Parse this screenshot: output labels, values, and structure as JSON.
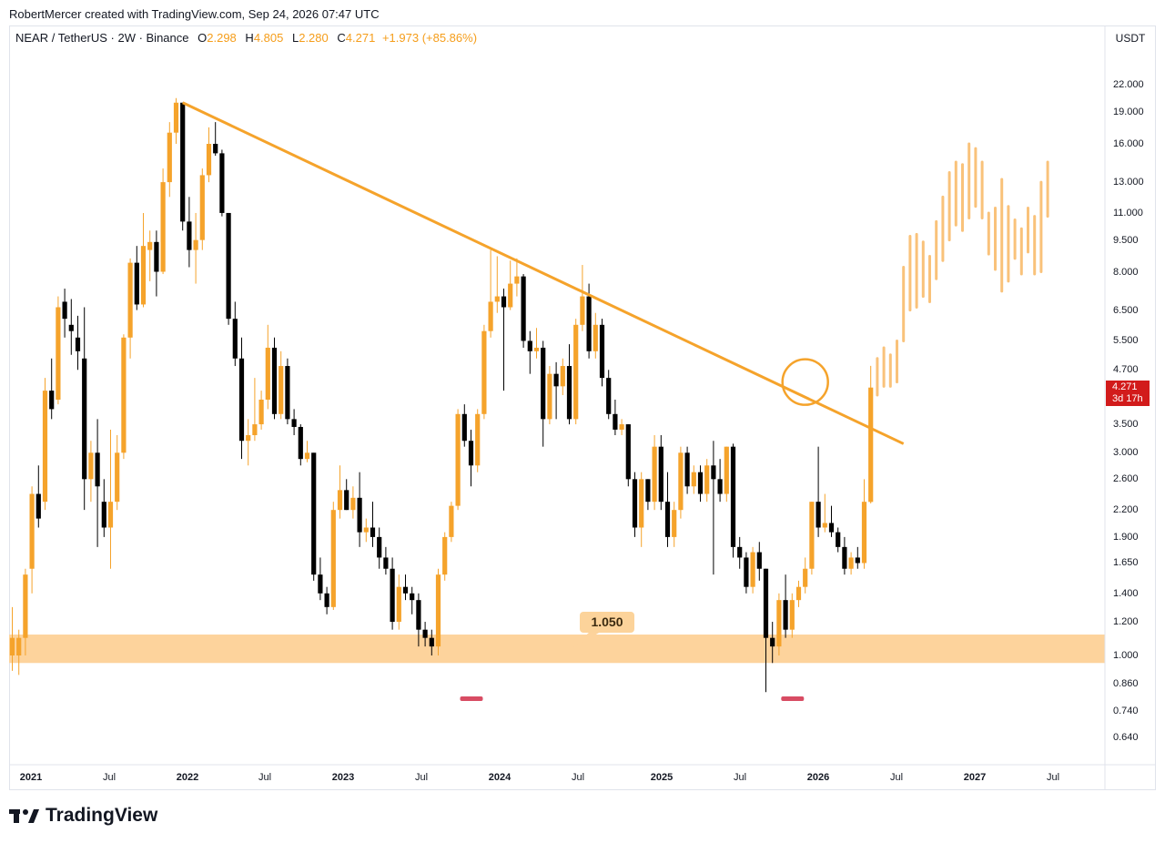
{
  "attribution": "RobertMercer created with TradingView.com, Sep 24, 2026 07:47 UTC",
  "legend": {
    "symbol": "NEAR / TetherUS · 2W · Binance",
    "open_key": "O",
    "open": "2.298",
    "high_key": "H",
    "high": "4.805",
    "low_key": "L",
    "low": "2.280",
    "close_key": "C",
    "close": "4.271",
    "change": "+1.973 (+85.86%)"
  },
  "currency_button": "USDT",
  "price_axis_labels": [
    "22.000",
    "19.000",
    "16.000",
    "13.000",
    "11.000",
    "9.500",
    "8.000",
    "6.500",
    "5.500",
    "4.700",
    "3.500",
    "3.000",
    "2.600",
    "2.200",
    "1.900",
    "1.650",
    "1.400",
    "1.200",
    "1.000",
    "0.860",
    "0.740",
    "0.640"
  ],
  "last_price_badge": {
    "price": "4.271",
    "countdown": "3d 17h"
  },
  "support_level_label": "1.050",
  "footer_brand": "TradingView",
  "colors": {
    "bull": "#f5a32b",
    "bear": "#000000",
    "trendline": "#f5a32b",
    "zone": "#fdd39c",
    "projection": "#f9c27a",
    "marker": "#d84c63",
    "badge": "#d21b1b"
  },
  "chart_data": {
    "type": "candlestick",
    "symbol": "NEAR / TetherUS",
    "interval": "2W",
    "exchange": "Binance",
    "y_scale": "log",
    "ylim": [
      0.6,
      24
    ],
    "x_ticks": [
      "2021",
      "Jul",
      "2022",
      "Jul",
      "2023",
      "Jul",
      "2024",
      "Jul",
      "2025",
      "Jul",
      "2026",
      "Jul",
      "2027",
      "Jul"
    ],
    "candles": [
      {
        "o": 1.0,
        "h": 1.3,
        "l": 0.92,
        "c": 1.1
      },
      {
        "o": 1.0,
        "h": 1.15,
        "l": 0.9,
        "c": 1.1
      },
      {
        "o": 1.1,
        "h": 1.6,
        "l": 1.0,
        "c": 1.55
      },
      {
        "o": 1.6,
        "h": 2.5,
        "l": 1.4,
        "c": 2.4
      },
      {
        "o": 2.4,
        "h": 2.8,
        "l": 2.0,
        "c": 2.1
      },
      {
        "o": 2.3,
        "h": 4.5,
        "l": 2.2,
        "c": 4.2
      },
      {
        "o": 4.2,
        "h": 5.0,
        "l": 3.6,
        "c": 3.8
      },
      {
        "o": 4.0,
        "h": 7.0,
        "l": 3.9,
        "c": 6.6
      },
      {
        "o": 6.8,
        "h": 7.3,
        "l": 5.6,
        "c": 6.2
      },
      {
        "o": 6.0,
        "h": 6.9,
        "l": 5.1,
        "c": 5.8
      },
      {
        "o": 5.6,
        "h": 6.3,
        "l": 4.7,
        "c": 5.2
      },
      {
        "o": 5.0,
        "h": 6.6,
        "l": 2.2,
        "c": 2.6
      },
      {
        "o": 2.6,
        "h": 3.2,
        "l": 2.3,
        "c": 3.0
      },
      {
        "o": 3.0,
        "h": 3.6,
        "l": 1.8,
        "c": 2.5
      },
      {
        "o": 2.3,
        "h": 2.6,
        "l": 1.9,
        "c": 2.0
      },
      {
        "o": 2.0,
        "h": 3.4,
        "l": 1.6,
        "c": 2.3
      },
      {
        "o": 2.3,
        "h": 3.3,
        "l": 2.2,
        "c": 3.0
      },
      {
        "o": 3.0,
        "h": 5.7,
        "l": 2.9,
        "c": 5.6
      },
      {
        "o": 5.6,
        "h": 8.6,
        "l": 5.0,
        "c": 8.4
      },
      {
        "o": 8.4,
        "h": 9.2,
        "l": 6.5,
        "c": 6.7
      },
      {
        "o": 6.7,
        "h": 11.0,
        "l": 6.6,
        "c": 9.2
      },
      {
        "o": 9.0,
        "h": 10.0,
        "l": 7.6,
        "c": 9.4
      },
      {
        "o": 9.4,
        "h": 10.0,
        "l": 7.0,
        "c": 8.0
      },
      {
        "o": 8.0,
        "h": 14.0,
        "l": 7.9,
        "c": 13.0
      },
      {
        "o": 13.0,
        "h": 18.0,
        "l": 12.0,
        "c": 17.0
      },
      {
        "o": 17.0,
        "h": 20.5,
        "l": 16.0,
        "c": 20.0
      },
      {
        "o": 20.0,
        "h": 20.0,
        "l": 10.0,
        "c": 10.5
      },
      {
        "o": 10.5,
        "h": 12.0,
        "l": 8.2,
        "c": 9.0
      },
      {
        "o": 9.0,
        "h": 11.0,
        "l": 7.5,
        "c": 9.5
      },
      {
        "o": 9.5,
        "h": 14.0,
        "l": 9.0,
        "c": 13.5
      },
      {
        "o": 13.5,
        "h": 17.5,
        "l": 13.0,
        "c": 16.0
      },
      {
        "o": 16.0,
        "h": 18.0,
        "l": 15.0,
        "c": 15.2
      },
      {
        "o": 15.2,
        "h": 15.5,
        "l": 10.8,
        "c": 11.0
      },
      {
        "o": 11.0,
        "h": 11.0,
        "l": 6.0,
        "c": 6.2
      },
      {
        "o": 6.2,
        "h": 6.8,
        "l": 4.8,
        "c": 5.0
      },
      {
        "o": 5.0,
        "h": 5.6,
        "l": 2.9,
        "c": 3.2
      },
      {
        "o": 3.2,
        "h": 3.6,
        "l": 2.8,
        "c": 3.3
      },
      {
        "o": 3.3,
        "h": 4.5,
        "l": 3.2,
        "c": 3.5
      },
      {
        "o": 3.5,
        "h": 4.2,
        "l": 3.4,
        "c": 4.0
      },
      {
        "o": 4.0,
        "h": 6.0,
        "l": 3.8,
        "c": 5.3
      },
      {
        "o": 5.3,
        "h": 5.6,
        "l": 3.6,
        "c": 3.7
      },
      {
        "o": 3.7,
        "h": 5.2,
        "l": 3.6,
        "c": 4.8
      },
      {
        "o": 4.8,
        "h": 5.0,
        "l": 3.5,
        "c": 3.6
      },
      {
        "o": 3.6,
        "h": 3.8,
        "l": 3.3,
        "c": 3.45
      },
      {
        "o": 3.45,
        "h": 3.5,
        "l": 2.8,
        "c": 2.9
      },
      {
        "o": 2.9,
        "h": 3.2,
        "l": 2.85,
        "c": 3.0
      },
      {
        "o": 3.0,
        "h": 3.0,
        "l": 1.5,
        "c": 1.55
      },
      {
        "o": 1.55,
        "h": 1.7,
        "l": 1.35,
        "c": 1.4
      },
      {
        "o": 1.4,
        "h": 1.45,
        "l": 1.25,
        "c": 1.3
      },
      {
        "o": 1.3,
        "h": 2.3,
        "l": 1.28,
        "c": 2.2
      },
      {
        "o": 2.2,
        "h": 2.8,
        "l": 2.1,
        "c": 2.45
      },
      {
        "o": 2.45,
        "h": 2.6,
        "l": 2.2,
        "c": 2.2
      },
      {
        "o": 2.2,
        "h": 2.5,
        "l": 2.1,
        "c": 2.35
      },
      {
        "o": 2.35,
        "h": 2.7,
        "l": 1.8,
        "c": 1.95
      },
      {
        "o": 1.95,
        "h": 2.1,
        "l": 1.85,
        "c": 2.0
      },
      {
        "o": 2.0,
        "h": 2.3,
        "l": 1.8,
        "c": 1.9
      },
      {
        "o": 1.9,
        "h": 2.0,
        "l": 1.6,
        "c": 1.7
      },
      {
        "o": 1.7,
        "h": 1.8,
        "l": 1.55,
        "c": 1.6
      },
      {
        "o": 1.6,
        "h": 1.7,
        "l": 1.15,
        "c": 1.2
      },
      {
        "o": 1.2,
        "h": 1.55,
        "l": 1.15,
        "c": 1.45
      },
      {
        "o": 1.45,
        "h": 1.55,
        "l": 1.35,
        "c": 1.4
      },
      {
        "o": 1.4,
        "h": 1.45,
        "l": 1.25,
        "c": 1.35
      },
      {
        "o": 1.35,
        "h": 1.4,
        "l": 1.05,
        "c": 1.15
      },
      {
        "o": 1.15,
        "h": 1.2,
        "l": 1.05,
        "c": 1.1
      },
      {
        "o": 1.1,
        "h": 1.15,
        "l": 1.0,
        "c": 1.05
      },
      {
        "o": 1.05,
        "h": 1.6,
        "l": 1.0,
        "c": 1.55
      },
      {
        "o": 1.55,
        "h": 1.95,
        "l": 1.5,
        "c": 1.9
      },
      {
        "o": 1.9,
        "h": 2.3,
        "l": 1.85,
        "c": 2.25
      },
      {
        "o": 2.25,
        "h": 3.8,
        "l": 2.2,
        "c": 3.7
      },
      {
        "o": 3.7,
        "h": 3.9,
        "l": 3.1,
        "c": 3.2
      },
      {
        "o": 3.2,
        "h": 3.4,
        "l": 2.5,
        "c": 2.8
      },
      {
        "o": 2.8,
        "h": 3.8,
        "l": 2.7,
        "c": 3.7
      },
      {
        "o": 3.7,
        "h": 6.0,
        "l": 3.6,
        "c": 5.8
      },
      {
        "o": 5.8,
        "h": 9.0,
        "l": 5.6,
        "c": 6.8
      },
      {
        "o": 6.8,
        "h": 8.7,
        "l": 6.4,
        "c": 7.0
      },
      {
        "o": 7.0,
        "h": 7.3,
        "l": 4.2,
        "c": 6.6
      },
      {
        "o": 6.6,
        "h": 8.5,
        "l": 6.5,
        "c": 7.5
      },
      {
        "o": 7.5,
        "h": 8.6,
        "l": 7.0,
        "c": 7.8
      },
      {
        "o": 7.8,
        "h": 7.9,
        "l": 5.3,
        "c": 5.5
      },
      {
        "o": 5.5,
        "h": 5.8,
        "l": 4.6,
        "c": 5.2
      },
      {
        "o": 5.2,
        "h": 5.9,
        "l": 5.0,
        "c": 5.3
      },
      {
        "o": 5.3,
        "h": 5.5,
        "l": 3.1,
        "c": 3.6
      },
      {
        "o": 3.6,
        "h": 4.8,
        "l": 3.5,
        "c": 4.6
      },
      {
        "o": 4.6,
        "h": 4.9,
        "l": 3.6,
        "c": 4.3
      },
      {
        "o": 4.3,
        "h": 5.0,
        "l": 4.1,
        "c": 4.8
      },
      {
        "o": 4.8,
        "h": 5.4,
        "l": 3.5,
        "c": 3.6
      },
      {
        "o": 3.6,
        "h": 6.2,
        "l": 3.5,
        "c": 6.0
      },
      {
        "o": 6.0,
        "h": 8.3,
        "l": 5.8,
        "c": 7.0
      },
      {
        "o": 7.0,
        "h": 7.5,
        "l": 5.0,
        "c": 5.2
      },
      {
        "o": 5.2,
        "h": 6.4,
        "l": 5.0,
        "c": 6.0
      },
      {
        "o": 6.0,
        "h": 6.2,
        "l": 4.3,
        "c": 4.5
      },
      {
        "o": 4.5,
        "h": 4.7,
        "l": 3.6,
        "c": 3.7
      },
      {
        "o": 3.7,
        "h": 4.0,
        "l": 3.3,
        "c": 3.4
      },
      {
        "o": 3.4,
        "h": 3.6,
        "l": 3.3,
        "c": 3.5
      },
      {
        "o": 3.5,
        "h": 3.5,
        "l": 2.5,
        "c": 2.6
      },
      {
        "o": 2.6,
        "h": 2.7,
        "l": 1.9,
        "c": 2.0
      },
      {
        "o": 2.0,
        "h": 2.7,
        "l": 1.8,
        "c": 2.6
      },
      {
        "o": 2.6,
        "h": 2.6,
        "l": 2.2,
        "c": 2.3
      },
      {
        "o": 2.3,
        "h": 3.3,
        "l": 2.2,
        "c": 3.1
      },
      {
        "o": 3.1,
        "h": 3.3,
        "l": 2.2,
        "c": 2.3
      },
      {
        "o": 2.3,
        "h": 2.7,
        "l": 1.8,
        "c": 1.9
      },
      {
        "o": 1.9,
        "h": 2.3,
        "l": 1.8,
        "c": 2.2
      },
      {
        "o": 2.2,
        "h": 3.1,
        "l": 2.1,
        "c": 3.0
      },
      {
        "o": 3.0,
        "h": 3.1,
        "l": 2.4,
        "c": 2.5
      },
      {
        "o": 2.5,
        "h": 2.8,
        "l": 2.4,
        "c": 2.7
      },
      {
        "o": 2.7,
        "h": 2.8,
        "l": 2.3,
        "c": 2.4
      },
      {
        "o": 2.4,
        "h": 2.9,
        "l": 2.3,
        "c": 2.8
      },
      {
        "o": 2.8,
        "h": 3.2,
        "l": 1.55,
        "c": 2.6
      },
      {
        "o": 2.6,
        "h": 2.9,
        "l": 2.3,
        "c": 2.4
      },
      {
        "o": 2.4,
        "h": 3.1,
        "l": 2.3,
        "c": 3.1
      },
      {
        "o": 3.1,
        "h": 3.15,
        "l": 1.7,
        "c": 1.8
      },
      {
        "o": 1.8,
        "h": 1.9,
        "l": 1.6,
        "c": 1.7
      },
      {
        "o": 1.7,
        "h": 1.75,
        "l": 1.4,
        "c": 1.45
      },
      {
        "o": 1.45,
        "h": 1.8,
        "l": 1.4,
        "c": 1.75
      },
      {
        "o": 1.75,
        "h": 1.85,
        "l": 1.5,
        "c": 1.6
      },
      {
        "o": 1.6,
        "h": 1.6,
        "l": 0.82,
        "c": 1.1
      },
      {
        "o": 1.1,
        "h": 1.2,
        "l": 0.96,
        "c": 1.05
      },
      {
        "o": 1.05,
        "h": 1.4,
        "l": 1.0,
        "c": 1.35
      },
      {
        "o": 1.35,
        "h": 1.55,
        "l": 1.1,
        "c": 1.15
      },
      {
        "o": 1.15,
        "h": 1.4,
        "l": 1.1,
        "c": 1.35
      },
      {
        "o": 1.35,
        "h": 1.5,
        "l": 1.3,
        "c": 1.45
      },
      {
        "o": 1.45,
        "h": 1.7,
        "l": 1.4,
        "c": 1.6
      },
      {
        "o": 1.6,
        "h": 2.3,
        "l": 1.55,
        "c": 2.3
      },
      {
        "o": 2.3,
        "h": 3.1,
        "l": 1.9,
        "c": 2.0
      },
      {
        "o": 2.0,
        "h": 2.4,
        "l": 1.95,
        "c": 2.05
      },
      {
        "o": 2.05,
        "h": 2.25,
        "l": 1.9,
        "c": 1.95
      },
      {
        "o": 1.95,
        "h": 2.0,
        "l": 1.75,
        "c": 1.8
      },
      {
        "o": 1.8,
        "h": 1.9,
        "l": 1.55,
        "c": 1.6
      },
      {
        "o": 1.6,
        "h": 1.75,
        "l": 1.55,
        "c": 1.7
      },
      {
        "o": 1.7,
        "h": 1.8,
        "l": 1.6,
        "c": 1.65
      },
      {
        "o": 1.65,
        "h": 2.6,
        "l": 1.6,
        "c": 2.3
      },
      {
        "o": 2.298,
        "h": 4.805,
        "l": 2.28,
        "c": 4.271
      }
    ],
    "projection_bars": [
      {
        "h": 5.0,
        "l": 4.1
      },
      {
        "h": 5.3,
        "l": 4.3
      },
      {
        "h": 5.1,
        "l": 4.3
      },
      {
        "h": 5.5,
        "l": 4.4
      },
      {
        "h": 8.2,
        "l": 5.5
      },
      {
        "h": 9.7,
        "l": 6.5
      },
      {
        "h": 9.8,
        "l": 6.6
      },
      {
        "h": 9.4,
        "l": 7.0
      },
      {
        "h": 8.7,
        "l": 6.8
      },
      {
        "h": 10.5,
        "l": 7.7
      },
      {
        "h": 12.0,
        "l": 8.5
      },
      {
        "h": 13.7,
        "l": 9.5
      },
      {
        "h": 14.5,
        "l": 10.3
      },
      {
        "h": 14.3,
        "l": 10.0
      },
      {
        "h": 16.0,
        "l": 10.7
      },
      {
        "h": 15.6,
        "l": 11.4
      },
      {
        "h": 14.5,
        "l": 10.7
      },
      {
        "h": 11.0,
        "l": 8.8
      },
      {
        "h": 11.3,
        "l": 8.1
      },
      {
        "h": 13.2,
        "l": 7.2
      },
      {
        "h": 11.4,
        "l": 7.6
      },
      {
        "h": 10.6,
        "l": 8.6
      },
      {
        "h": 10.1,
        "l": 7.9
      },
      {
        "h": 11.3,
        "l": 8.9
      },
      {
        "h": 10.8,
        "l": 7.9
      },
      {
        "h": 13.0,
        "l": 8.0
      },
      {
        "h": 14.5,
        "l": 10.8
      }
    ],
    "trendline": {
      "from": {
        "bar_index": 26,
        "price": 20.0
      },
      "to": {
        "bar_index": 136,
        "price": 3.15
      }
    },
    "support_zone": {
      "low": 0.96,
      "high": 1.12,
      "label": "1.050"
    },
    "bottom_markers_bar_index": [
      70,
      119
    ],
    "highlight_circle": {
      "bar_index": 121,
      "price": 4.4
    },
    "last_price": 4.271
  }
}
